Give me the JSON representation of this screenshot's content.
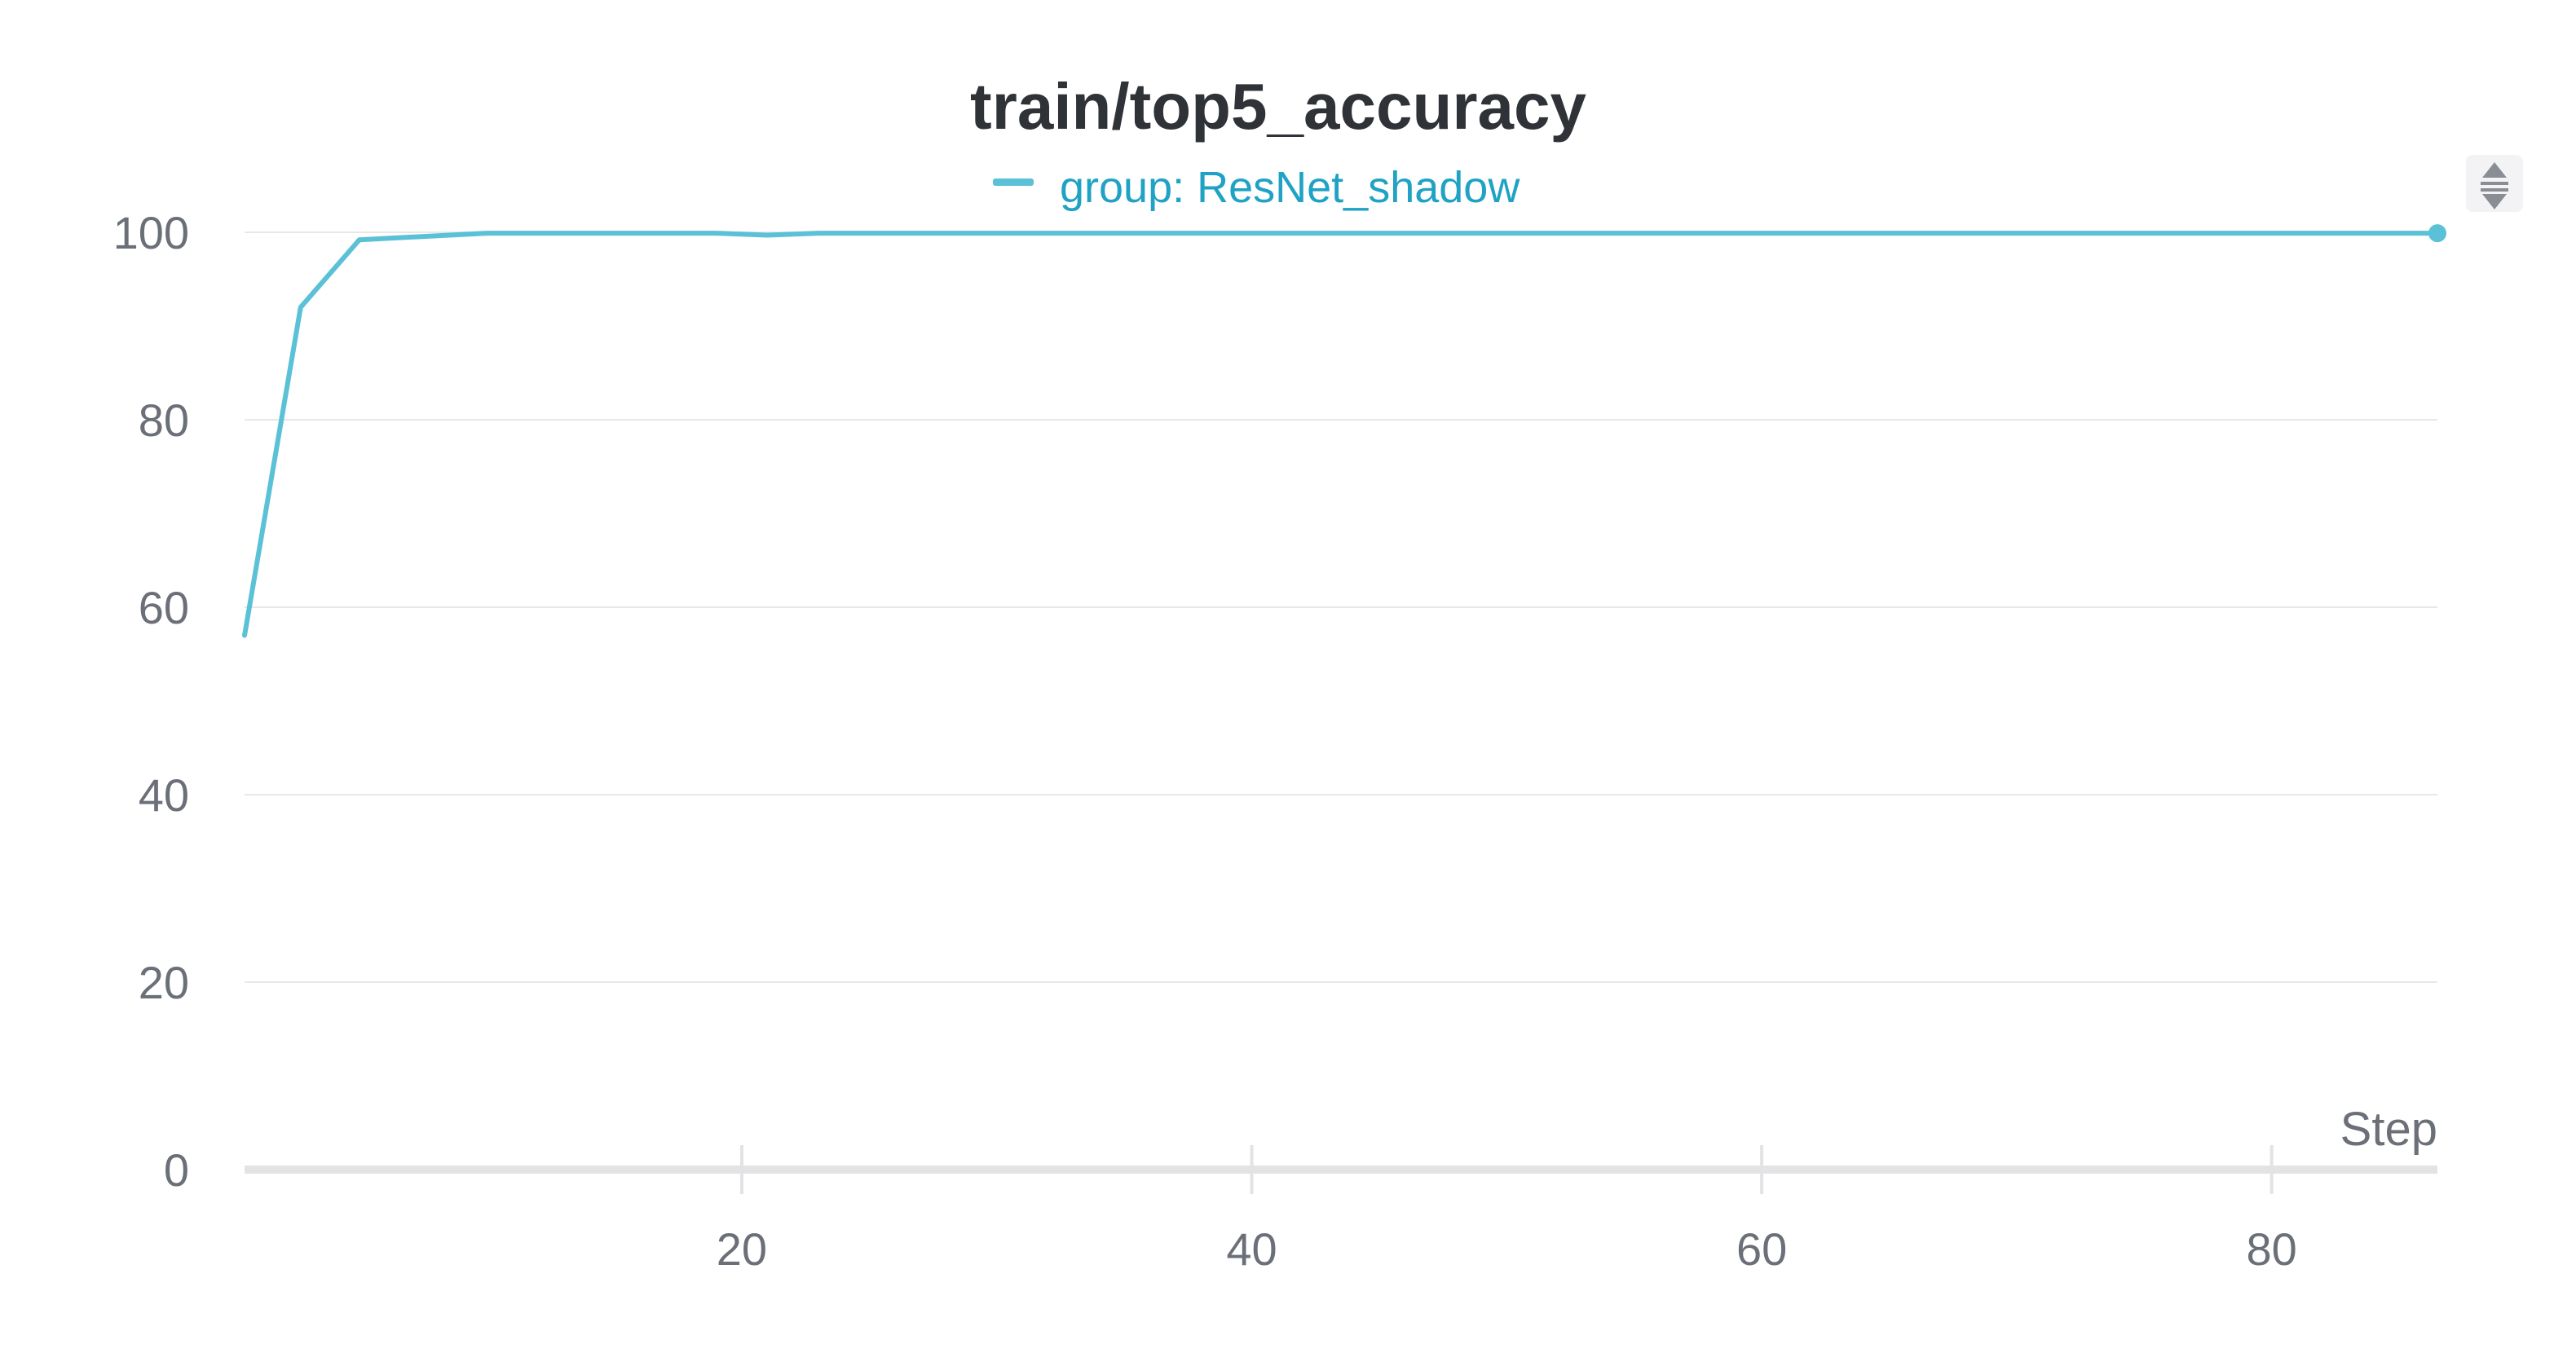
{
  "chart_data": {
    "type": "line",
    "title": "train/top5_accuracy",
    "xlabel": "Step",
    "ylabel": "",
    "xlim": [
      0.5,
      86.5
    ],
    "ylim": [
      0,
      100
    ],
    "x_ticks": [
      20,
      40,
      60,
      80
    ],
    "y_ticks": [
      0,
      20,
      40,
      60,
      80,
      100
    ],
    "grid": true,
    "legend_position": "top-center",
    "series": [
      {
        "name": "group: ResNet_shadow",
        "color": "#5bc1d6",
        "legend_text_color": "#1fa2c4",
        "x": [
          0.5,
          2.7,
          5.0,
          10.0,
          15.0,
          19.0,
          21.0,
          23.0,
          30.0,
          40.0,
          50.0,
          60.0,
          70.0,
          80.0,
          86.5
        ],
        "y": [
          57,
          92,
          99.2,
          99.9,
          99.9,
          99.9,
          99.7,
          99.9,
          99.9,
          99.9,
          99.9,
          99.9,
          99.9,
          99.9,
          99.9
        ]
      }
    ]
  },
  "controls": {
    "legend_toggle_icon": "sort-arrows-icon"
  }
}
